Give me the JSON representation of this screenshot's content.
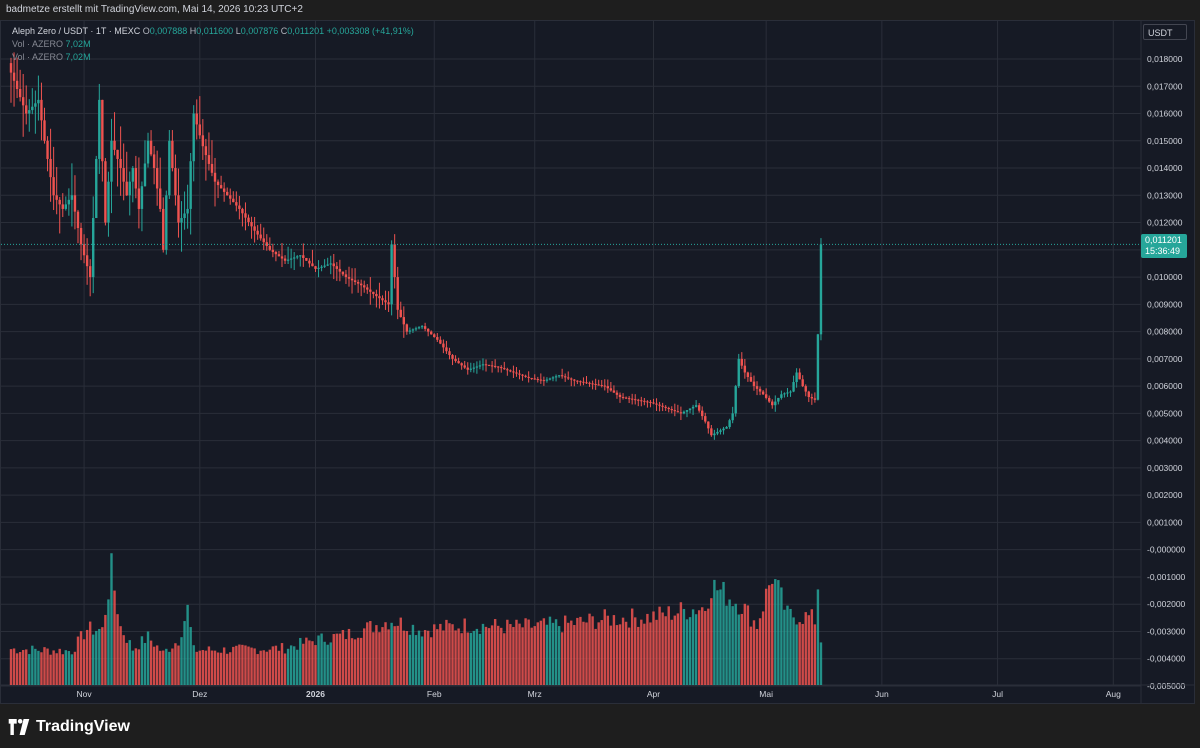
{
  "header": {
    "attribution": "badmetze erstellt mit TradingView.com, Mai 14, 2026 10:23 UTC+2"
  },
  "legend": {
    "symbol": "Aleph Zero / USDT · 1T · MEXC",
    "o_key": "O",
    "o_val": "0,007888",
    "h_key": "H",
    "h_val": "0,011600",
    "l_key": "L",
    "l_val": "0,007876",
    "c_key": "C",
    "c_val": "0,011201",
    "change": "+0,003308 (+41,91%)",
    "vol1_label": "Vol · AZERO",
    "vol1_val": "7,02M",
    "vol2_label": "Vol · AZERO",
    "vol2_val": "7,02M"
  },
  "axis": {
    "currency": "USDT"
  },
  "last_price": {
    "price": "0,011201",
    "countdown": "15:36:49"
  },
  "brand": {
    "name": "TradingView"
  },
  "colors": {
    "up": "#26a69a",
    "down": "#ef5350",
    "bg": "#161a25",
    "grid": "#2a2e39"
  },
  "chart_data": {
    "type": "candlestick",
    "series": "Aleph Zero / USDT daily",
    "x_tick_labels": [
      "Nov",
      "Dez",
      "2026",
      "Feb",
      "Mrz",
      "Apr",
      "Mai",
      "Jun",
      "Jul",
      "Aug"
    ],
    "y_tick_labels": [
      "0,018000",
      "0,017000",
      "0,016000",
      "0,015000",
      "0,014000",
      "0,013000",
      "0,012000",
      "0,011000",
      "0,010000",
      "0,009000",
      "0,008000",
      "0,007000",
      "0,006000",
      "0,005000",
      "0,004000",
      "0,003000",
      "0,002000",
      "0,001000",
      "-0,000000",
      "-0,001000",
      "-0,002000",
      "-0,003000",
      "-0,004000",
      "-0,005000"
    ],
    "ylim": [
      -0.005,
      0.0185
    ],
    "volume_scale": [
      0,
      18
    ],
    "anchors": [
      {
        "i": 0,
        "p": 0.0175
      },
      {
        "i": 5,
        "p": 0.016
      },
      {
        "i": 9,
        "p": 0.0165
      },
      {
        "i": 11,
        "p": 0.015
      },
      {
        "i": 14,
        "p": 0.013
      },
      {
        "i": 17,
        "p": 0.0125
      },
      {
        "i": 20,
        "p": 0.013
      },
      {
        "i": 23,
        "p": 0.0112
      },
      {
        "i": 26,
        "p": 0.01
      },
      {
        "i": 29,
        "p": 0.0165
      },
      {
        "i": 31,
        "p": 0.012
      },
      {
        "i": 33,
        "p": 0.015
      },
      {
        "i": 36,
        "p": 0.014
      },
      {
        "i": 38,
        "p": 0.013
      },
      {
        "i": 40,
        "p": 0.014
      },
      {
        "i": 42,
        "p": 0.0125
      },
      {
        "i": 45,
        "p": 0.015
      },
      {
        "i": 47,
        "p": 0.014
      },
      {
        "i": 49,
        "p": 0.0125
      },
      {
        "i": 50,
        "p": 0.011
      },
      {
        "i": 52,
        "p": 0.015
      },
      {
        "i": 55,
        "p": 0.012
      },
      {
        "i": 58,
        "p": 0.0125
      },
      {
        "i": 60,
        "p": 0.016
      },
      {
        "i": 63,
        "p": 0.0148
      },
      {
        "i": 67,
        "p": 0.0135
      },
      {
        "i": 71,
        "p": 0.013
      },
      {
        "i": 75,
        "p": 0.0125
      },
      {
        "i": 80,
        "p": 0.0117
      },
      {
        "i": 85,
        "p": 0.011
      },
      {
        "i": 90,
        "p": 0.0106
      },
      {
        "i": 95,
        "p": 0.0108
      },
      {
        "i": 100,
        "p": 0.0103
      },
      {
        "i": 105,
        "p": 0.0105
      },
      {
        "i": 110,
        "p": 0.01
      },
      {
        "i": 115,
        "p": 0.0097
      },
      {
        "i": 120,
        "p": 0.0093
      },
      {
        "i": 124,
        "p": 0.009
      },
      {
        "i": 125,
        "p": 0.0112
      },
      {
        "i": 127,
        "p": 0.0088
      },
      {
        "i": 130,
        "p": 0.008
      },
      {
        "i": 135,
        "p": 0.0082
      },
      {
        "i": 140,
        "p": 0.0077
      },
      {
        "i": 145,
        "p": 0.007
      },
      {
        "i": 150,
        "p": 0.0066
      },
      {
        "i": 155,
        "p": 0.0068
      },
      {
        "i": 160,
        "p": 0.0067
      },
      {
        "i": 165,
        "p": 0.0065
      },
      {
        "i": 170,
        "p": 0.0063
      },
      {
        "i": 175,
        "p": 0.0062
      },
      {
        "i": 180,
        "p": 0.0064
      },
      {
        "i": 185,
        "p": 0.0062
      },
      {
        "i": 190,
        "p": 0.0061
      },
      {
        "i": 195,
        "p": 0.006
      },
      {
        "i": 200,
        "p": 0.0056
      },
      {
        "i": 205,
        "p": 0.0055
      },
      {
        "i": 210,
        "p": 0.0054
      },
      {
        "i": 215,
        "p": 0.0052
      },
      {
        "i": 220,
        "p": 0.005
      },
      {
        "i": 225,
        "p": 0.0053
      },
      {
        "i": 228,
        "p": 0.0047
      },
      {
        "i": 230,
        "p": 0.0042
      },
      {
        "i": 235,
        "p": 0.0045
      },
      {
        "i": 237,
        "p": 0.005
      },
      {
        "i": 239,
        "p": 0.007
      },
      {
        "i": 241,
        "p": 0.0065
      },
      {
        "i": 244,
        "p": 0.006
      },
      {
        "i": 247,
        "p": 0.0057
      },
      {
        "i": 250,
        "p": 0.0053
      },
      {
        "i": 253,
        "p": 0.0057
      },
      {
        "i": 256,
        "p": 0.0058
      },
      {
        "i": 258,
        "p": 0.0065
      },
      {
        "i": 260,
        "p": 0.006
      },
      {
        "i": 262,
        "p": 0.0056
      },
      {
        "i": 264,
        "p": 0.0055
      },
      {
        "i": 265,
        "p": 0.0079
      },
      {
        "i": 266,
        "p": 0.0112
      }
    ],
    "volume_anchors": [
      {
        "i": 0,
        "v": 3.6
      },
      {
        "i": 20,
        "v": 3.4
      },
      {
        "i": 25,
        "v": 5.6
      },
      {
        "i": 30,
        "v": 5.5
      },
      {
        "i": 33,
        "v": 11.5
      },
      {
        "i": 36,
        "v": 5.8
      },
      {
        "i": 40,
        "v": 3.6
      },
      {
        "i": 45,
        "v": 4.8
      },
      {
        "i": 50,
        "v": 3.2
      },
      {
        "i": 55,
        "v": 4.5
      },
      {
        "i": 58,
        "v": 7.6
      },
      {
        "i": 60,
        "v": 3.5
      },
      {
        "i": 70,
        "v": 3.5
      },
      {
        "i": 80,
        "v": 3.6
      },
      {
        "i": 90,
        "v": 3.7
      },
      {
        "i": 100,
        "v": 4.5
      },
      {
        "i": 110,
        "v": 5.0
      },
      {
        "i": 125,
        "v": 6.5
      },
      {
        "i": 135,
        "v": 5.5
      },
      {
        "i": 150,
        "v": 6.0
      },
      {
        "i": 165,
        "v": 5.8
      },
      {
        "i": 180,
        "v": 6.0
      },
      {
        "i": 195,
        "v": 6.6
      },
      {
        "i": 210,
        "v": 6.8
      },
      {
        "i": 220,
        "v": 7.4
      },
      {
        "i": 228,
        "v": 7.8
      },
      {
        "i": 230,
        "v": 10.0
      },
      {
        "i": 235,
        "v": 9.0
      },
      {
        "i": 240,
        "v": 8.0
      },
      {
        "i": 245,
        "v": 6.0
      },
      {
        "i": 250,
        "v": 11.0
      },
      {
        "i": 255,
        "v": 7.0
      },
      {
        "i": 262,
        "v": 6.8
      },
      {
        "i": 264,
        "v": 6.5
      },
      {
        "i": 265,
        "v": 10.0
      },
      {
        "i": 266,
        "v": 4.5
      }
    ]
  }
}
